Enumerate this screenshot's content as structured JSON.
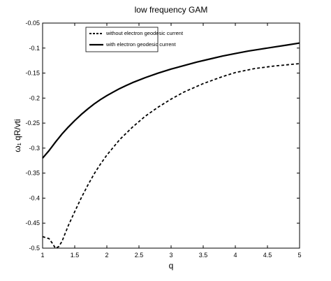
{
  "chart_data": {
    "type": "line",
    "title": "low frequency GAM",
    "xlabel": "q",
    "ylabel": "ω₁ qR/vti",
    "xlim": [
      1,
      5
    ],
    "ylim": [
      -0.5,
      -0.05
    ],
    "xticks": [
      "1",
      "1.5",
      "2",
      "2.5",
      "3",
      "3.5",
      "4",
      "4.5",
      "5"
    ],
    "yticks": [
      "-0.05",
      "-0.1",
      "-0.15",
      "-0.2",
      "-0.25",
      "-0.3",
      "-0.35",
      "-0.4",
      "-0.45",
      "-0.5"
    ],
    "grid": false,
    "legend_position": "top-left",
    "series": [
      {
        "name": "without electron geodesic current",
        "style": "dashed",
        "color": "#000000",
        "x": [
          1.0,
          1.05,
          1.1,
          1.15,
          1.2,
          1.25,
          1.3,
          1.4,
          1.5,
          1.6,
          1.7,
          1.8,
          1.9,
          2.0,
          2.2,
          2.4,
          2.6,
          2.8,
          3.0,
          3.2,
          3.5,
          3.8,
          4.0,
          4.3,
          4.6,
          5.0
        ],
        "y": [
          -0.477,
          -0.479,
          -0.481,
          -0.49,
          -0.5,
          -0.497,
          -0.487,
          -0.455,
          -0.427,
          -0.4,
          -0.375,
          -0.352,
          -0.332,
          -0.314,
          -0.283,
          -0.258,
          -0.236,
          -0.218,
          -0.202,
          -0.188,
          -0.171,
          -0.157,
          -0.149,
          -0.141,
          -0.136,
          -0.131
        ]
      },
      {
        "name": "with electron geodesic current",
        "style": "solid",
        "color": "#000000",
        "x": [
          1.0,
          1.1,
          1.2,
          1.3,
          1.4,
          1.5,
          1.6,
          1.7,
          1.8,
          1.9,
          2.0,
          2.1,
          2.2,
          2.3,
          2.4,
          2.6,
          2.8,
          3.0,
          3.2,
          3.4,
          3.6,
          3.8,
          4.0,
          4.2,
          4.4,
          4.6,
          4.8,
          5.0
        ],
        "y": [
          -0.32,
          -0.305,
          -0.288,
          -0.272,
          -0.258,
          -0.245,
          -0.233,
          -0.222,
          -0.212,
          -0.203,
          -0.195,
          -0.188,
          -0.181,
          -0.175,
          -0.169,
          -0.159,
          -0.15,
          -0.142,
          -0.135,
          -0.128,
          -0.122,
          -0.116,
          -0.111,
          -0.106,
          -0.102,
          -0.098,
          -0.094,
          -0.09
        ]
      }
    ]
  }
}
